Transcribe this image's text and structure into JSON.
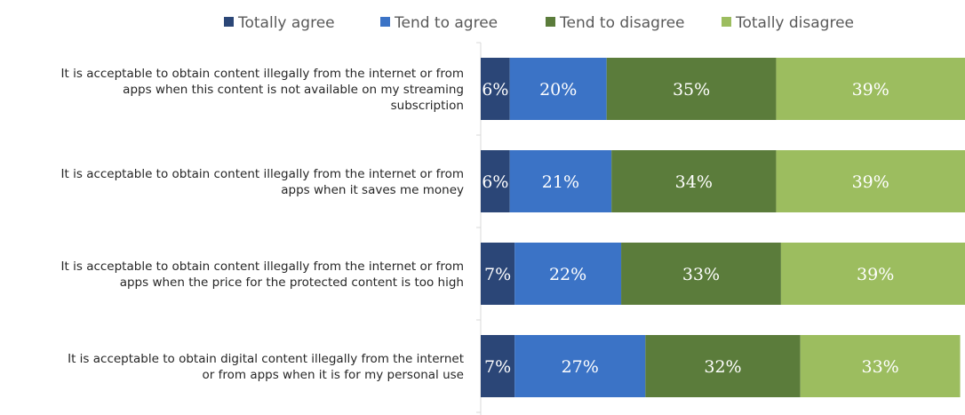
{
  "chart_data": {
    "type": "bar",
    "orientation": "horizontal",
    "stacked": true,
    "percent_stacked": true,
    "legend_position": "top",
    "grid": false,
    "xlim": [
      0,
      100
    ],
    "categories": [
      [
        "It is acceptable to obtain content illegally from the internet or from",
        "apps when this content is not available on my streaming",
        "subscription"
      ],
      [
        "It is acceptable to obtain content illegally from the internet or from",
        "apps when it saves me money"
      ],
      [
        "It is acceptable to obtain  content illegally from the internet or from",
        "apps when the price for the protected content is too high"
      ],
      [
        "It is acceptable to obtain digital content illegally from the internet",
        "or from apps when it is for my personal use"
      ]
    ],
    "series": [
      {
        "name": "Totally agree",
        "color": "#2b4677",
        "values": [
          6,
          6,
          7,
          7
        ]
      },
      {
        "name": "Tend to agree",
        "color": "#3b73c6",
        "values": [
          20,
          21,
          22,
          27
        ]
      },
      {
        "name": "Tend to disagree",
        "color": "#5b7c3b",
        "values": [
          35,
          34,
          33,
          32
        ]
      },
      {
        "name": "Totally disagree",
        "color": "#9cbd5f",
        "values": [
          39,
          39,
          39,
          33
        ]
      }
    ],
    "data_labels": [
      [
        "6%",
        "20%",
        "35%",
        "39%"
      ],
      [
        "6%",
        "21%",
        "34%",
        "39%"
      ],
      [
        "7%",
        "22%",
        "33%",
        "39%"
      ],
      [
        "7%",
        "27%",
        "32%",
        "33%"
      ]
    ]
  }
}
